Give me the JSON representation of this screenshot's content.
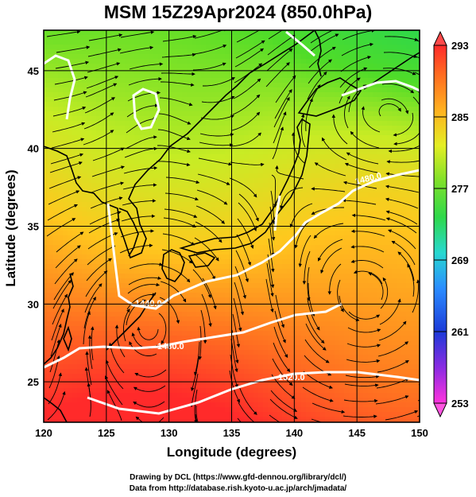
{
  "title": "MSM 15Z29Apr2024 (850.0hPa)",
  "axes": {
    "xlabel": "Longitude (degrees)",
    "ylabel": "Latitude  (degrees)",
    "x_ticks": [
      "120",
      "125",
      "130",
      "135",
      "140",
      "145",
      "150"
    ],
    "y_ticks": [
      "25",
      "30",
      "35",
      "40",
      "45"
    ]
  },
  "colorbar": {
    "labels": [
      "293",
      "285",
      "277",
      "269",
      "261",
      "253"
    ]
  },
  "contour_labels": [
    "1440.0",
    "1480.0",
    "1520.0",
    "1480.0"
  ],
  "credits": {
    "line1": "Drawing by DCL (https://www.gfd-dennou.org/library/dcl/)",
    "line2": "Data from http://database.rish.kyoto-u.ac.jp/arch/jmadata/"
  },
  "chart_data": {
    "type": "heatmap",
    "title": "MSM 15Z29Apr2024 (850.0hPa)",
    "xlabel": "Longitude (degrees)",
    "ylabel": "Latitude  (degrees)",
    "xlim": [
      120,
      150
    ],
    "ylim": [
      22.4,
      47.6
    ],
    "x_ticks": [
      120,
      125,
      130,
      135,
      140,
      145,
      150
    ],
    "y_ticks": [
      25,
      30,
      35,
      40,
      45
    ],
    "grid": true,
    "colorbar": {
      "min": 253,
      "max": 293,
      "labels": [
        293,
        285,
        277,
        269,
        261,
        253
      ]
    },
    "contour_labels": [
      "1440.0",
      "1480.0",
      "1520.0",
      "1480.0"
    ]
  }
}
